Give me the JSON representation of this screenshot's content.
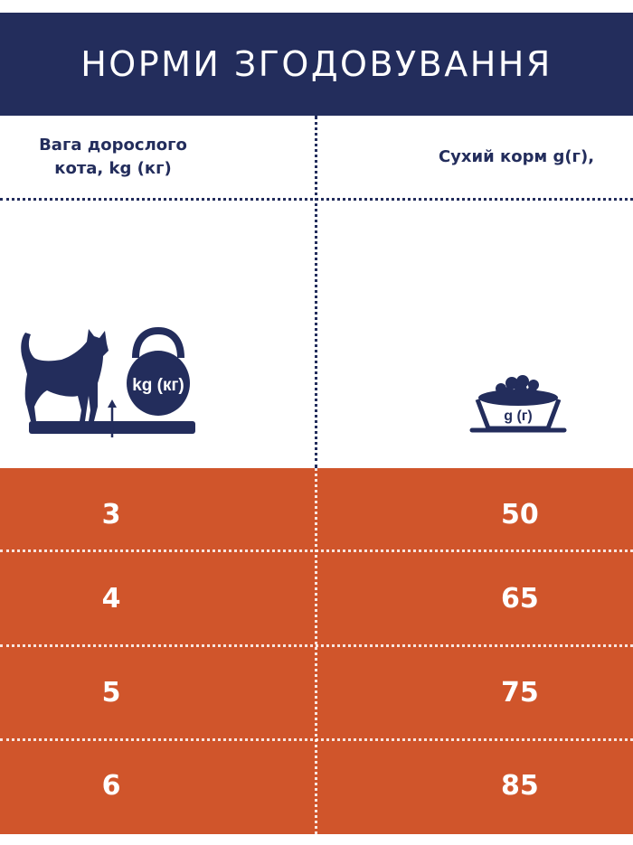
{
  "title": "НОРМИ ЗГОДОВУВАННЯ",
  "columns": {
    "weight_header": "Вага дорослого кота, kg (кг)",
    "food_header": "Сухий корм g(г),"
  },
  "icons": {
    "weight_icon": "cat-on-scale-with-kettlebell",
    "weight_icon_label": "kg (кг)",
    "food_icon": "food-bowl",
    "food_icon_label": "g (г)"
  },
  "colors": {
    "navy": "#232d5c",
    "orange": "#d0552b",
    "white": "#ffffff"
  },
  "rows": [
    {
      "weight": "3",
      "food": "50"
    },
    {
      "weight": "4",
      "food": "65"
    },
    {
      "weight": "5",
      "food": "75"
    },
    {
      "weight": "6",
      "food": "85"
    }
  ]
}
